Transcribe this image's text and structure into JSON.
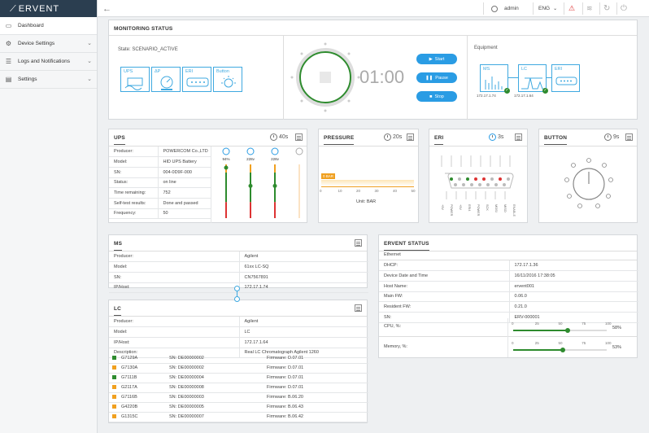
{
  "app": {
    "logo": "ERVENT"
  },
  "sidebar": {
    "items": [
      {
        "label": "Dashboard",
        "icon": "monitor-icon"
      },
      {
        "label": "Device Settings",
        "icon": "gear-icon"
      },
      {
        "label": "Logs and Notifications",
        "icon": "list-icon"
      },
      {
        "label": "Settings",
        "icon": "sliders-icon"
      }
    ]
  },
  "topbar": {
    "user": "admin",
    "lang": "ENG"
  },
  "monitoring": {
    "title": "MONITORING STATUS",
    "state": "State: SCENARIO_ACTIVE",
    "devices": [
      "UPS",
      "ΔP",
      "ERI",
      "Button"
    ],
    "timer": "01:00",
    "start": "Start",
    "pause": "Pause",
    "stop": "Stop",
    "equipment_label": "Equipment",
    "equipment": [
      {
        "label": "MS",
        "ip": "172.17.1.74"
      },
      {
        "label": "LC",
        "ip": "172.17.1.64"
      },
      {
        "label": "ERI",
        "ip": ""
      }
    ]
  },
  "ups": {
    "title": "UPS",
    "timer": "40s",
    "rows": [
      {
        "k": "Producer:",
        "v": "POWERCOM Co.,LTD"
      },
      {
        "k": "Model:",
        "v": "HID UPS Battery"
      },
      {
        "k": "SN:",
        "v": "004-0D9F-000"
      },
      {
        "k": "Status:",
        "v": "on line"
      },
      {
        "k": "Time remaining:",
        "v": "752"
      },
      {
        "k": "Self-test results:",
        "v": "Done and passed"
      },
      {
        "k": "Frequency:",
        "v": "50"
      }
    ],
    "gauges": [
      {
        "label": "94%",
        "level": 0.94
      },
      {
        "label": "228v",
        "level": 0.6
      },
      {
        "label": "228v",
        "level": 0.6
      }
    ]
  },
  "pressure": {
    "title": "PRESSURE",
    "timer": "20s",
    "value_label": "0 BAR",
    "unit": "Unit: BAR",
    "ticks": [
      "0",
      "10",
      "20",
      "30",
      "40",
      "50"
    ]
  },
  "eri": {
    "title": "ERI",
    "timer": "3s",
    "pin_labels": [
      "+5V",
      "POWER",
      "+5V",
      "ERI4",
      "POWER",
      "SCK",
      "MOSI",
      "MISO",
      "ENABLE"
    ]
  },
  "button": {
    "title": "BUTTON",
    "timer": "9s"
  },
  "ms": {
    "title": "MS",
    "rows": [
      {
        "k": "Producer:",
        "v": "Agilent"
      },
      {
        "k": "Model:",
        "v": "61xx LC-SQ"
      },
      {
        "k": "SN:",
        "v": "CN7567891"
      },
      {
        "k": "IP/Host:",
        "v": "172.17.1.74"
      }
    ]
  },
  "lc": {
    "title": "LC",
    "rows": [
      {
        "k": "Producer:",
        "v": "Agilent"
      },
      {
        "k": "Model:",
        "v": "LC"
      },
      {
        "k": "IP/Host:",
        "v": "172.17.1.64"
      },
      {
        "k": "Description:",
        "v": "Real LC Chromatograph Agilent 1260"
      }
    ],
    "modules": [
      {
        "name": "G7129A",
        "sn": "SN: DE00000002",
        "fw": "Firmware: D.07.01",
        "color": "#2e8b2e"
      },
      {
        "name": "G7130A",
        "sn": "SN: DE00000002",
        "fw": "Firmware: D.07.01",
        "color": "#f0a020"
      },
      {
        "name": "G7111B",
        "sn": "SN: DE00000004",
        "fw": "Firmware: D.07.01",
        "color": "#2e8b2e"
      },
      {
        "name": "G2117A",
        "sn": "SN: DE00000008",
        "fw": "Firmware: D.07.01",
        "color": "#f0a020"
      },
      {
        "name": "G7116B",
        "sn": "SN: DE00000003",
        "fw": "Firmware: B.06.20",
        "color": "#f0a020"
      },
      {
        "name": "G4220B",
        "sn": "SN: DE00000005",
        "fw": "Firmware: B.06.43",
        "color": "#f0a020"
      },
      {
        "name": "G1315C",
        "sn": "SN: DE00000007",
        "fw": "Firmware: B.06.42",
        "color": "#f0a020"
      }
    ]
  },
  "ervent_status": {
    "title": "ERVENT STATUS",
    "section": "Ethernet",
    "rows": [
      {
        "k": "DHCP:",
        "v": "172.17.1.36"
      },
      {
        "k": "Device Date and Time",
        "v": "16/11/2016 17:38:05"
      },
      {
        "k": "Host Name:",
        "v": "ervent001"
      },
      {
        "k": "Main FW:",
        "v": "0.06.0"
      },
      {
        "k": "Resident FW:",
        "v": "0.21.0"
      },
      {
        "k": "SN:",
        "v": "ERV-000001"
      }
    ],
    "cpu": {
      "label": "CPU, %:",
      "value": "58%",
      "level": 0.58
    },
    "memory": {
      "label": "Memory, %:",
      "value": "53%",
      "level": 0.53
    },
    "scale": [
      "0",
      "25",
      "50",
      "75",
      "100"
    ]
  }
}
